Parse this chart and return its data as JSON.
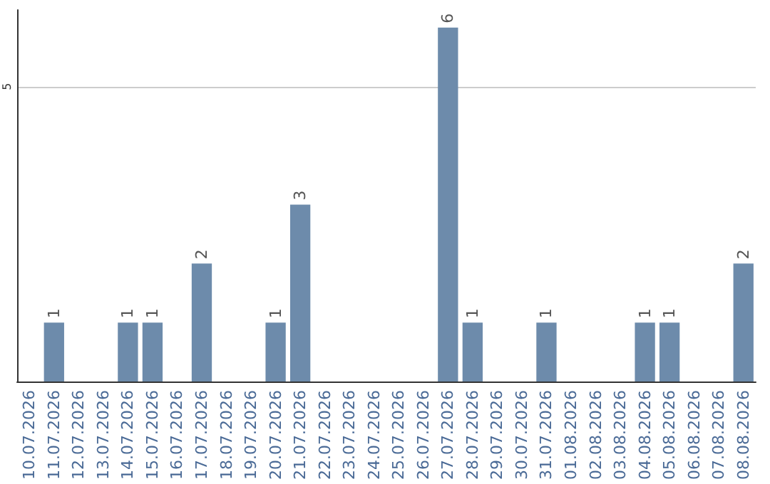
{
  "chart_data": {
    "type": "bar",
    "categories": [
      "10.07.2026",
      "11.07.2026",
      "12.07.2026",
      "13.07.2026",
      "14.07.2026",
      "15.07.2026",
      "16.07.2026",
      "17.07.2026",
      "18.07.2026",
      "19.07.2026",
      "20.07.2026",
      "21.07.2026",
      "22.07.2026",
      "23.07.2026",
      "24.07.2026",
      "25.07.2026",
      "26.07.2026",
      "27.07.2026",
      "28.07.2026",
      "29.07.2026",
      "30.07.2026",
      "31.07.2026",
      "01.08.2026",
      "02.08.2026",
      "03.08.2026",
      "04.08.2026",
      "05.08.2026",
      "06.08.2026",
      "07.08.2026",
      "08.08.2026"
    ],
    "values": [
      0,
      1,
      0,
      0,
      1,
      1,
      0,
      2,
      0,
      0,
      1,
      3,
      0,
      0,
      0,
      0,
      0,
      6,
      1,
      0,
      0,
      1,
      0,
      0,
      0,
      1,
      1,
      0,
      0,
      2
    ],
    "value_labels": [
      null,
      "1",
      null,
      null,
      "1",
      "1",
      null,
      "2",
      null,
      null,
      "1",
      "3",
      null,
      null,
      null,
      null,
      null,
      "6",
      "1",
      null,
      null,
      "1",
      null,
      null,
      null,
      "1",
      "1",
      null,
      null,
      "2"
    ],
    "color": "#6d8bab",
    "ylim": [
      0,
      6.3
    ],
    "yticks": [
      5
    ],
    "grid": "y"
  }
}
